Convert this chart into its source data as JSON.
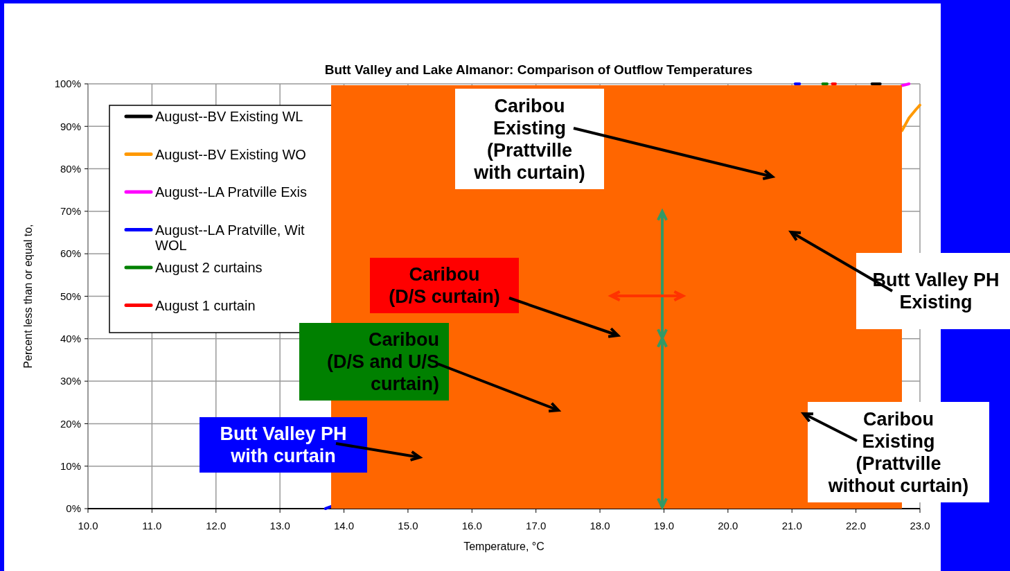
{
  "chart_data": {
    "type": "line",
    "title": "Butt Valley and Lake Almanor: Comparison of Outflow Temperatures",
    "xlabel": "Temperature, °C",
    "ylabel": "Percent less than or equal to,",
    "xlim": [
      10,
      23
    ],
    "xticks": [
      {
        "value": 10,
        "label": "10.0"
      },
      {
        "value": 11,
        "label": "11.0"
      },
      {
        "value": 12,
        "label": "12.0"
      },
      {
        "value": 13,
        "label": "13.0"
      },
      {
        "value": 14,
        "label": "14.0"
      },
      {
        "value": 15,
        "label": "15.0"
      },
      {
        "value": 16,
        "label": "16.0"
      },
      {
        "value": 17,
        "label": "17.0"
      },
      {
        "value": 18,
        "label": "18.0"
      },
      {
        "value": 19,
        "label": "19.0"
      },
      {
        "value": 20,
        "label": "20.0"
      },
      {
        "value": 21,
        "label": "21.0"
      },
      {
        "value": 22,
        "label": "22.0"
      },
      {
        "value": 23,
        "label": "23.0"
      }
    ],
    "ylim": [
      0,
      100
    ],
    "yticks": [
      {
        "value": 0,
        "label": "0%"
      },
      {
        "value": 10,
        "label": "10%"
      },
      {
        "value": 20,
        "label": "20%"
      },
      {
        "value": 30,
        "label": "30%"
      },
      {
        "value": 40,
        "label": "40%"
      },
      {
        "value": 50,
        "label": "50%"
      },
      {
        "value": 60,
        "label": "60%"
      },
      {
        "value": 70,
        "label": "70%"
      },
      {
        "value": 80,
        "label": "80%"
      },
      {
        "value": 90,
        "label": "90%"
      },
      {
        "value": 100,
        "label": "100%"
      }
    ],
    "grid": true,
    "legend": "top left",
    "marker": "none",
    "line_style": "solid",
    "series": [
      {
        "name": "August--BV Existing WL",
        "color": "#000000",
        "x": [
          22.25,
          22.38
        ],
        "values": [
          100,
          100
        ]
      },
      {
        "name": "August--BV Existing WO",
        "color": "#ff9900",
        "x": [
          22.72,
          22.83,
          22.94,
          23.0
        ],
        "values": [
          89,
          92,
          94,
          95
        ]
      },
      {
        "name": "August--LA Pratville Exis",
        "color": "#ff00ff",
        "x": [
          22.72,
          22.83
        ],
        "values": [
          99.6,
          100
        ]
      },
      {
        "name": "August--LA Pratville, Wit\nWOL",
        "color": "#0000ff",
        "x": [
          13.71,
          13.8,
          17.0,
          21.05,
          21.12
        ],
        "values": [
          0,
          0.5,
          null,
          100,
          100
        ]
      },
      {
        "name": "August 2 curtains",
        "color": "#008000",
        "x": [
          21.48,
          21.55
        ],
        "values": [
          100,
          100
        ]
      },
      {
        "name": "August 1 curtain",
        "color": "#ff0000",
        "x": [
          21.63,
          21.68
        ],
        "values": [
          100,
          100
        ]
      }
    ],
    "annotations": [
      "Caribou\nExisting\n(Prattville\nwith curtain)",
      "Butt Valley PH\nExisting",
      "Caribou\n(D/S curtain)",
      "Caribou\n(D/S and U/S\ncurtain)",
      "Butt Valley PH\nwith curtain",
      "Caribou\nExisting\n(Prattville\nwithout curtain)"
    ]
  }
}
